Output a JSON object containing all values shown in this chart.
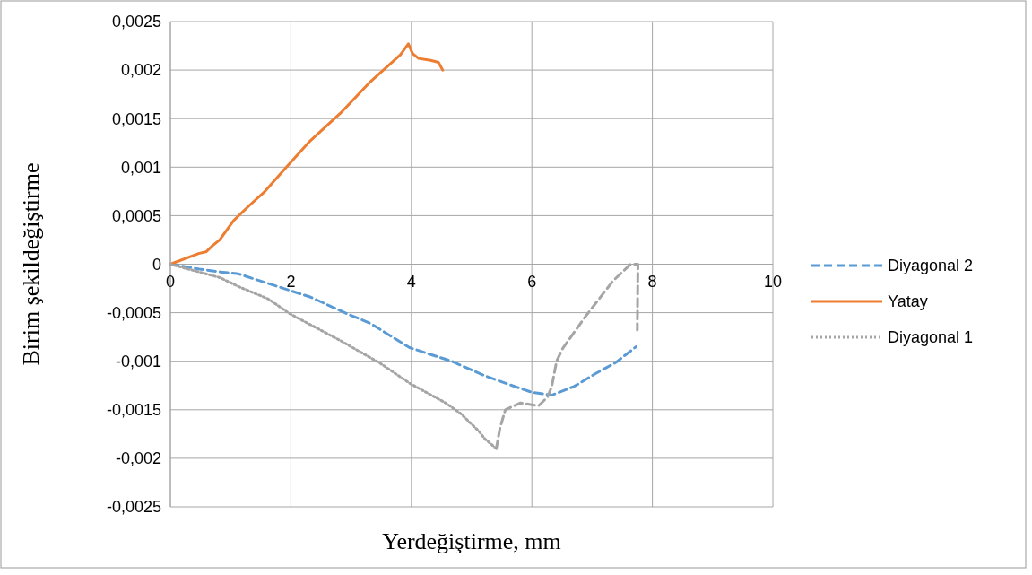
{
  "chart_data": {
    "type": "line",
    "xlabel": "Yerdeğiştirme, mm",
    "ylabel": "Birim şekildeğiştirme",
    "xlim": [
      0,
      10
    ],
    "xticks": [
      0,
      2,
      4,
      6,
      8,
      10
    ],
    "ylim": [
      -0.0025,
      0.0025
    ],
    "yticks": [
      {
        "value": -0.0025,
        "label": "-0,0025"
      },
      {
        "value": -0.002,
        "label": "-0,002"
      },
      {
        "value": -0.0015,
        "label": "-0,0015"
      },
      {
        "value": -0.001,
        "label": "-0,001"
      },
      {
        "value": -0.0005,
        "label": "-0,0005"
      },
      {
        "value": 0,
        "label": "0"
      },
      {
        "value": 0.0005,
        "label": "0,0005"
      },
      {
        "value": 0.001,
        "label": "0,001"
      },
      {
        "value": 0.0015,
        "label": "0,0015"
      },
      {
        "value": 0.002,
        "label": "0,002"
      },
      {
        "value": 0.0025,
        "label": "0,0025"
      }
    ],
    "grid": true,
    "legend": "right",
    "series": [
      {
        "name": "Diyagonal 2",
        "color": "#5b9bd5",
        "line_style": "dashed",
        "x": [
          0,
          0.48,
          0.83,
          1.13,
          1.48,
          1.93,
          2.33,
          2.93,
          3.32,
          3.97,
          4.67,
          5.22,
          5.76,
          6.0,
          6.33,
          6.7,
          7.05,
          7.4,
          7.73
        ],
        "values": [
          0,
          -5e-05,
          -8e-05,
          -0.0001,
          -0.00017,
          -0.00026,
          -0.00034,
          -0.00051,
          -0.00061,
          -0.00086,
          -0.001,
          -0.00115,
          -0.00127,
          -0.00132,
          -0.00135,
          -0.00126,
          -0.00113,
          -0.00101,
          -0.00085
        ]
      },
      {
        "name": "Yatay",
        "color": "#ed7d31",
        "line_style": "solid",
        "x": [
          0,
          0.47,
          0.6,
          0.7,
          0.82,
          1.05,
          1.32,
          1.57,
          1.97,
          2.32,
          2.83,
          3.32,
          3.82,
          3.95,
          4.02,
          4.12,
          4.32,
          4.45,
          4.52
        ],
        "values": [
          0,
          0.00011,
          0.00013,
          0.00019,
          0.00025,
          0.00045,
          0.00061,
          0.00075,
          0.00103,
          0.00127,
          0.00156,
          0.00188,
          0.00216,
          0.00227,
          0.00217,
          0.00212,
          0.0021,
          0.00208,
          0.002
        ]
      },
      {
        "name": "Diyagonal 1",
        "color": "#a5a5a5",
        "line_style": "dotted",
        "x": [
          0,
          0.83,
          1.13,
          1.63,
          1.98,
          2.83,
          3.48,
          3.98,
          4.57,
          4.82,
          5.12,
          5.22,
          5.41
        ],
        "values": [
          0,
          -0.00014,
          -0.00023,
          -0.00036,
          -0.00051,
          -0.00079,
          -0.00102,
          -0.00123,
          -0.00143,
          -0.00154,
          -0.00172,
          -0.0018,
          -0.0019
        ]
      },
      {
        "color": "#a5a5a5",
        "line_style": "dashed",
        "x": [
          5.41,
          5.47,
          5.56,
          5.81,
          6.11,
          6.26,
          6.33,
          6.41,
          6.51,
          6.9,
          7.35,
          7.64,
          7.76,
          7.75
        ],
        "values": [
          -0.0019,
          -0.00169,
          -0.0015,
          -0.00143,
          -0.00146,
          -0.00137,
          -0.00126,
          -0.001,
          -0.00087,
          -0.00053,
          -0.00017,
          0,
          0,
          -0.00068
        ]
      }
    ]
  }
}
